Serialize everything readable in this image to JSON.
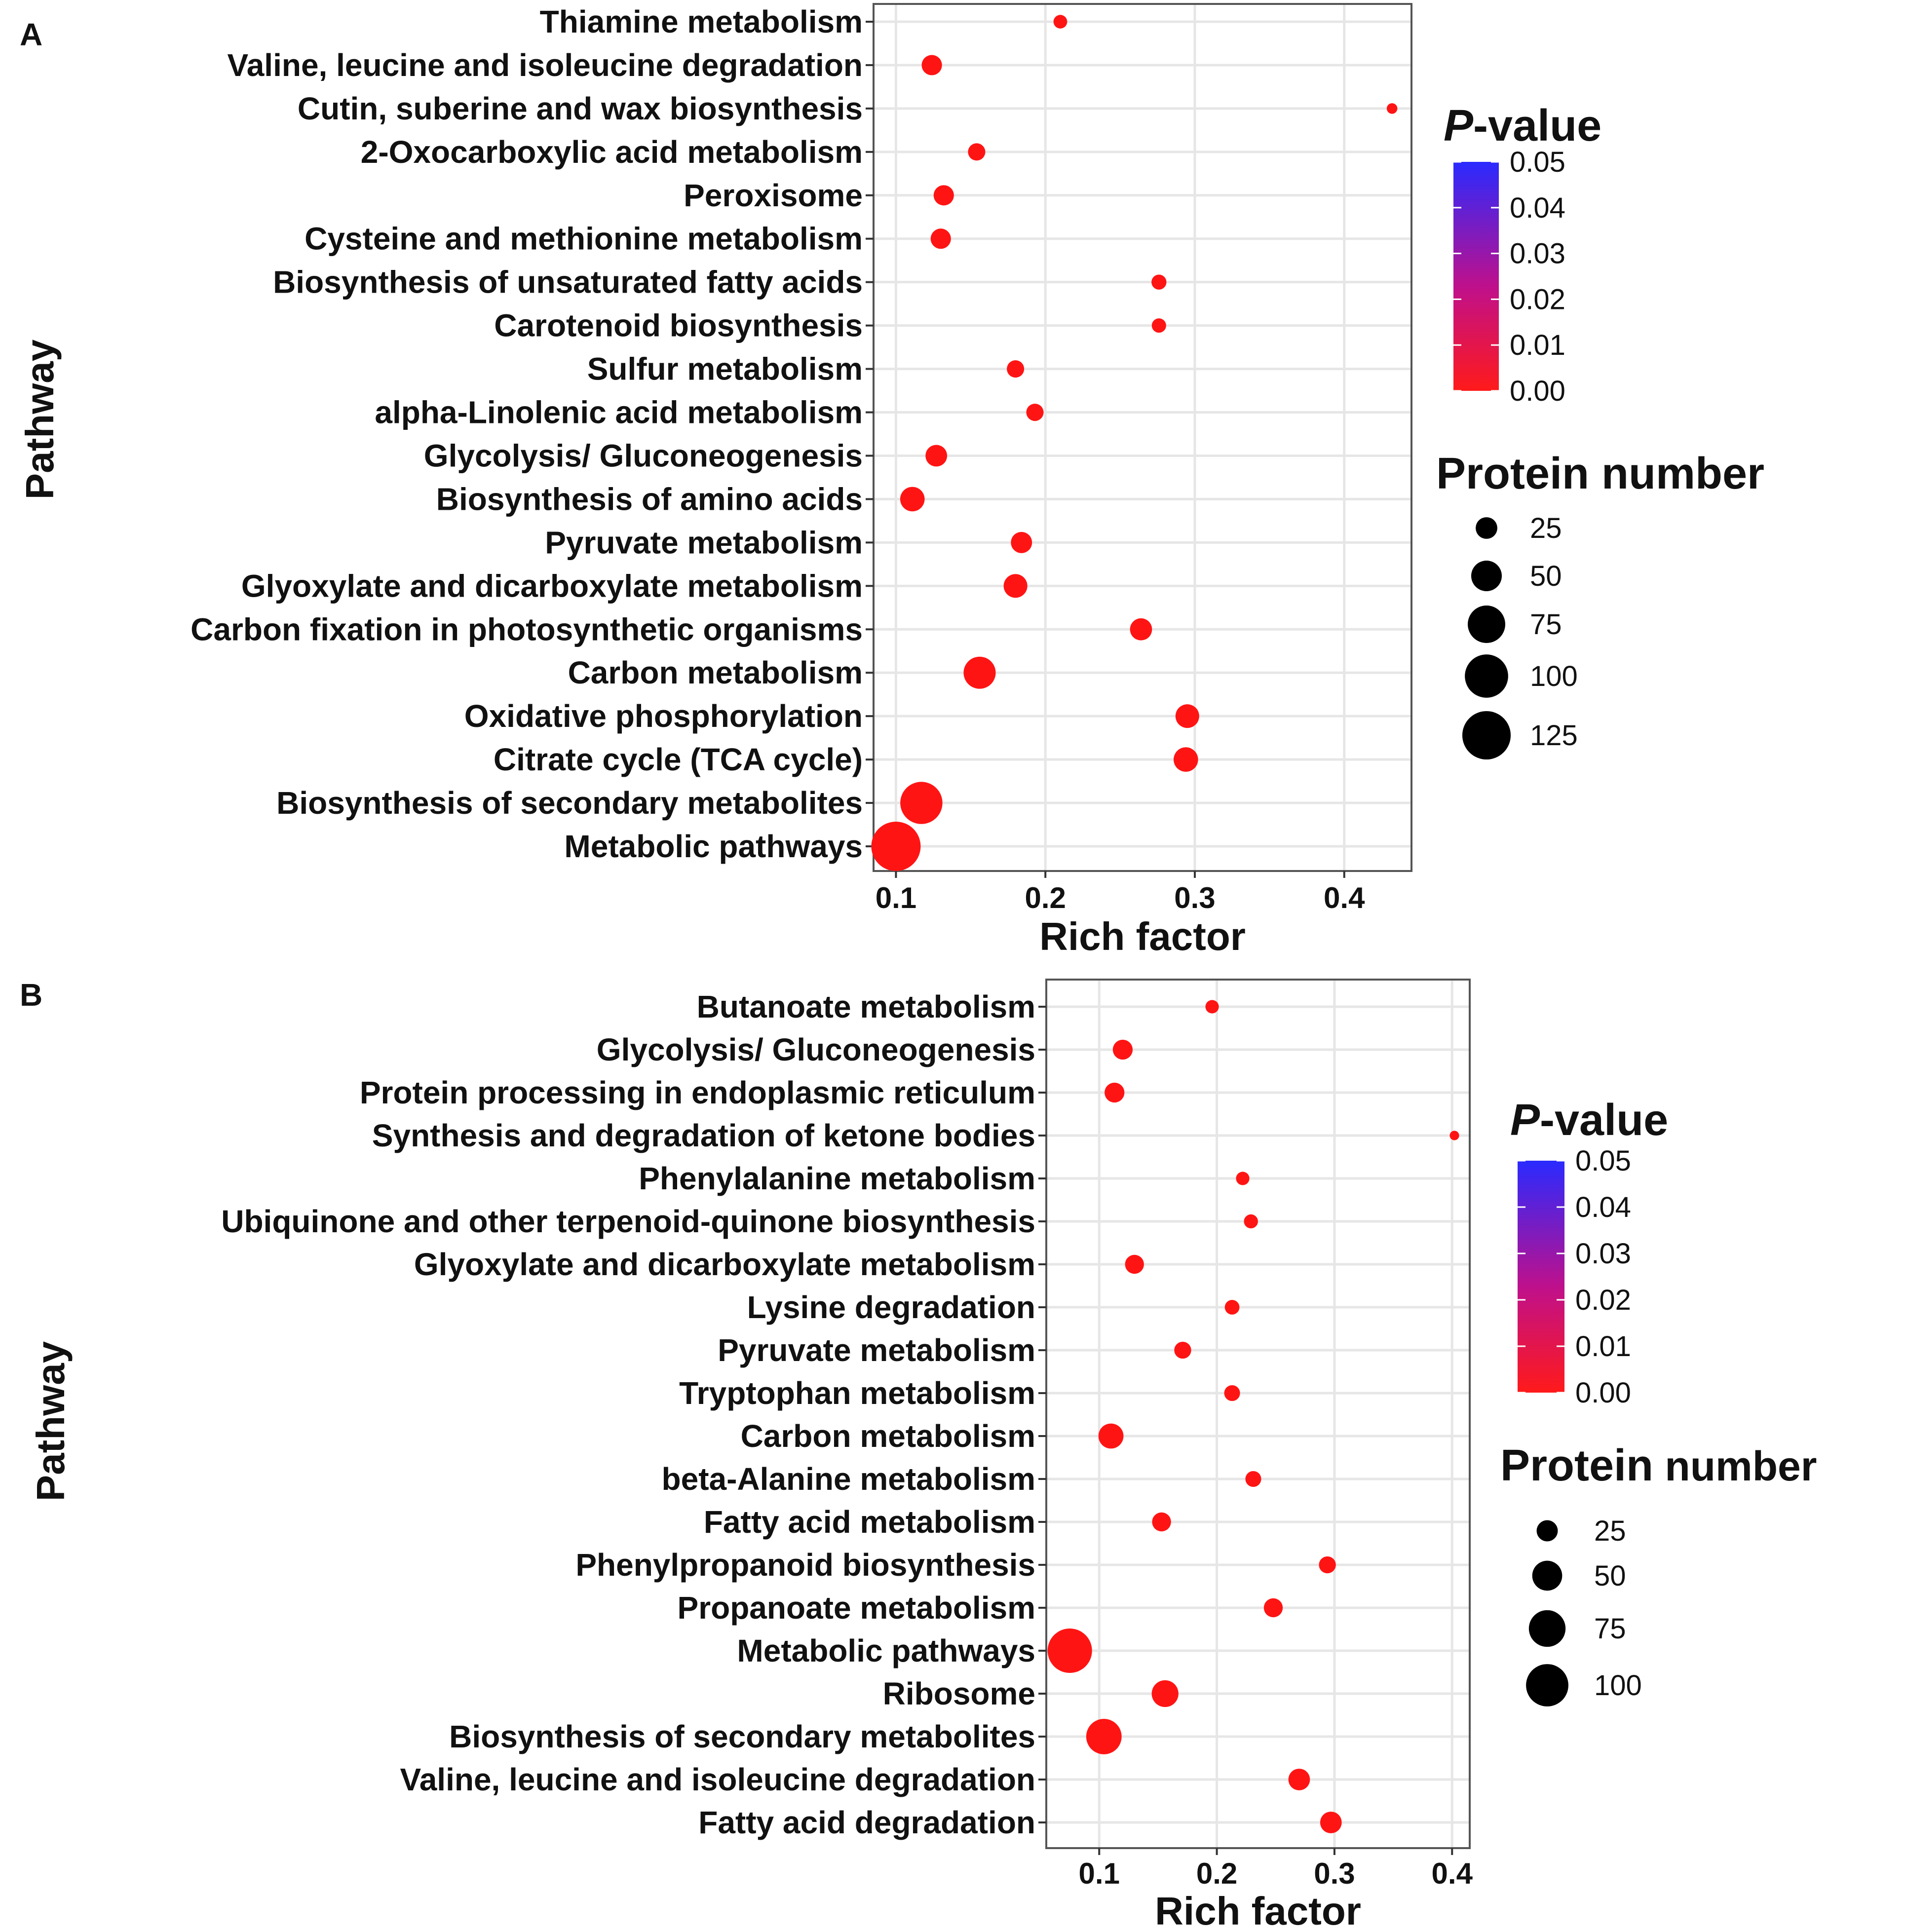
{
  "panels": [
    {
      "letter": "A",
      "chart_data": {
        "type": "scatter",
        "title": "",
        "xlabel": "Rich factor",
        "ylabel": "Pathway",
        "xlim": [
          0.085,
          0.445
        ],
        "xticks": [
          0.1,
          0.2,
          0.3,
          0.4
        ],
        "xtick_labels": [
          "0.1",
          "0.2",
          "0.3",
          "0.4"
        ],
        "grid": true,
        "points": [
          {
            "pathway": "Thiamine metabolism",
            "rich_factor": 0.21,
            "protein_number": 10,
            "p_value": 0.0
          },
          {
            "pathway": "Valine, leucine and isoleucine degradation",
            "rich_factor": 0.124,
            "protein_number": 22,
            "p_value": 0.0
          },
          {
            "pathway": "Cutin, suberine and wax biosynthesis",
            "rich_factor": 0.432,
            "protein_number": 6,
            "p_value": 0.0
          },
          {
            "pathway": "2-Oxocarboxylic acid metabolism",
            "rich_factor": 0.154,
            "protein_number": 16,
            "p_value": 0.0
          },
          {
            "pathway": "Peroxisome",
            "rich_factor": 0.132,
            "protein_number": 22,
            "p_value": 0.0
          },
          {
            "pathway": "Cysteine and methionine metabolism",
            "rich_factor": 0.13,
            "protein_number": 22,
            "p_value": 0.0
          },
          {
            "pathway": "Biosynthesis of unsaturated fatty acids",
            "rich_factor": 0.276,
            "protein_number": 12,
            "p_value": 0.0
          },
          {
            "pathway": "Carotenoid biosynthesis",
            "rich_factor": 0.276,
            "protein_number": 11,
            "p_value": 0.0
          },
          {
            "pathway": "Sulfur metabolism",
            "rich_factor": 0.18,
            "protein_number": 16,
            "p_value": 0.0
          },
          {
            "pathway": "alpha-Linolenic acid metabolism",
            "rich_factor": 0.193,
            "protein_number": 16,
            "p_value": 0.0
          },
          {
            "pathway": "Glycolysis/ Gluconeogenesis",
            "rich_factor": 0.127,
            "protein_number": 25,
            "p_value": 0.0
          },
          {
            "pathway": "Biosynthesis of amino acids",
            "rich_factor": 0.111,
            "protein_number": 32,
            "p_value": 0.0
          },
          {
            "pathway": "Pyruvate metabolism",
            "rich_factor": 0.184,
            "protein_number": 24,
            "p_value": 0.0
          },
          {
            "pathway": "Glyoxylate and dicarboxylate metabolism",
            "rich_factor": 0.18,
            "protein_number": 30,
            "p_value": 0.0
          },
          {
            "pathway": "Carbon fixation in photosynthetic organisms",
            "rich_factor": 0.264,
            "protein_number": 26,
            "p_value": 0.0
          },
          {
            "pathway": "Carbon metabolism",
            "rich_factor": 0.156,
            "protein_number": 55,
            "p_value": 0.0
          },
          {
            "pathway": "Oxidative phosphorylation",
            "rich_factor": 0.295,
            "protein_number": 30,
            "p_value": 0.0
          },
          {
            "pathway": "Citrate cycle (TCA cycle)",
            "rich_factor": 0.294,
            "protein_number": 32,
            "p_value": 0.0
          },
          {
            "pathway": "Biosynthesis of secondary metabolites",
            "rich_factor": 0.117,
            "protein_number": 95,
            "p_value": 0.0
          },
          {
            "pathway": "Metabolic pathways",
            "rich_factor": 0.1,
            "protein_number": 130,
            "p_value": 0.0
          }
        ],
        "color_legend": {
          "title_italic": "P",
          "title_rest": "-value",
          "low_color": "#ff1a1a",
          "mid_color": "#c0108a",
          "high_color": "#2a2aff",
          "range": [
            0.0,
            0.05
          ],
          "labels": [
            "0.05",
            "0.04",
            "0.03",
            "0.02",
            "0.01",
            "0.00"
          ]
        },
        "size_legend": {
          "title_main": "Protein number",
          "title_sub": "",
          "values": [
            25,
            50,
            75,
            100,
            125
          ],
          "labels": [
            "25",
            "50",
            "75",
            "100",
            "125"
          ]
        },
        "point_color": "#ff1414"
      }
    },
    {
      "letter": "B",
      "chart_data": {
        "type": "scatter",
        "title": "",
        "xlabel": "Rich factor",
        "ylabel": "Pathway",
        "xlim": [
          0.055,
          0.415
        ],
        "xticks": [
          0.1,
          0.2,
          0.3,
          0.4
        ],
        "xtick_labels": [
          "0.1",
          "0.2",
          "0.3",
          "0.4"
        ],
        "grid": true,
        "points": [
          {
            "pathway": "Butanoate metabolism",
            "rich_factor": 0.196,
            "protein_number": 10,
            "p_value": 0.0
          },
          {
            "pathway": "Glycolysis/ Gluconeogenesis",
            "rich_factor": 0.12,
            "protein_number": 22,
            "p_value": 0.0
          },
          {
            "pathway": "Protein processing in endoplasmic reticulum",
            "rich_factor": 0.113,
            "protein_number": 22,
            "p_value": 0.0
          },
          {
            "pathway": "Synthesis and degradation of ketone bodies",
            "rich_factor": 0.402,
            "protein_number": 5,
            "p_value": 0.0
          },
          {
            "pathway": "Phenylalanine metabolism",
            "rich_factor": 0.222,
            "protein_number": 10,
            "p_value": 0.0
          },
          {
            "pathway": "Ubiquinone and other terpenoid-quinone biosynthesis",
            "rich_factor": 0.229,
            "protein_number": 11,
            "p_value": 0.0
          },
          {
            "pathway": "Glyoxylate and dicarboxylate metabolism",
            "rich_factor": 0.13,
            "protein_number": 20,
            "p_value": 0.0
          },
          {
            "pathway": "Lysine degradation",
            "rich_factor": 0.213,
            "protein_number": 12,
            "p_value": 0.0
          },
          {
            "pathway": "Pyruvate metabolism",
            "rich_factor": 0.171,
            "protein_number": 16,
            "p_value": 0.0
          },
          {
            "pathway": "Tryptophan metabolism",
            "rich_factor": 0.213,
            "protein_number": 14,
            "p_value": 0.0
          },
          {
            "pathway": "Carbon metabolism",
            "rich_factor": 0.11,
            "protein_number": 35,
            "p_value": 0.0
          },
          {
            "pathway": "beta-Alanine metabolism",
            "rich_factor": 0.231,
            "protein_number": 14,
            "p_value": 0.0
          },
          {
            "pathway": "Fatty acid metabolism",
            "rich_factor": 0.153,
            "protein_number": 20,
            "p_value": 0.0
          },
          {
            "pathway": "Phenylpropanoid biosynthesis",
            "rich_factor": 0.294,
            "protein_number": 16,
            "p_value": 0.0
          },
          {
            "pathway": "Propanoate metabolism",
            "rich_factor": 0.248,
            "protein_number": 20,
            "p_value": 0.0
          },
          {
            "pathway": "Metabolic pathways",
            "rich_factor": 0.075,
            "protein_number": 110,
            "p_value": 0.0
          },
          {
            "pathway": "Ribosome",
            "rich_factor": 0.156,
            "protein_number": 40,
            "p_value": 0.0
          },
          {
            "pathway": "Biosynthesis of secondary metabolites",
            "rich_factor": 0.104,
            "protein_number": 70,
            "p_value": 0.0
          },
          {
            "pathway": "Valine, leucine and isoleucine degradation",
            "rich_factor": 0.27,
            "protein_number": 26,
            "p_value": 0.0
          },
          {
            "pathway": "Fatty acid degradation",
            "rich_factor": 0.297,
            "protein_number": 26,
            "p_value": 0.0
          }
        ],
        "color_legend": {
          "title_italic": "P",
          "title_rest": "-value",
          "low_color": "#ff1a1a",
          "mid_color": "#c0108a",
          "high_color": "#2a2aff",
          "range": [
            0.0,
            0.05
          ],
          "labels": [
            "0.05",
            "0.04",
            "0.03",
            "0.02",
            "0.01",
            "0.00"
          ]
        },
        "size_legend": {
          "title_main": "Protein",
          "title_sub": " number",
          "values": [
            25,
            50,
            75,
            100
          ],
          "labels": [
            "25",
            "50",
            "75",
            "100"
          ]
        },
        "point_color": "#ff1414"
      }
    }
  ]
}
